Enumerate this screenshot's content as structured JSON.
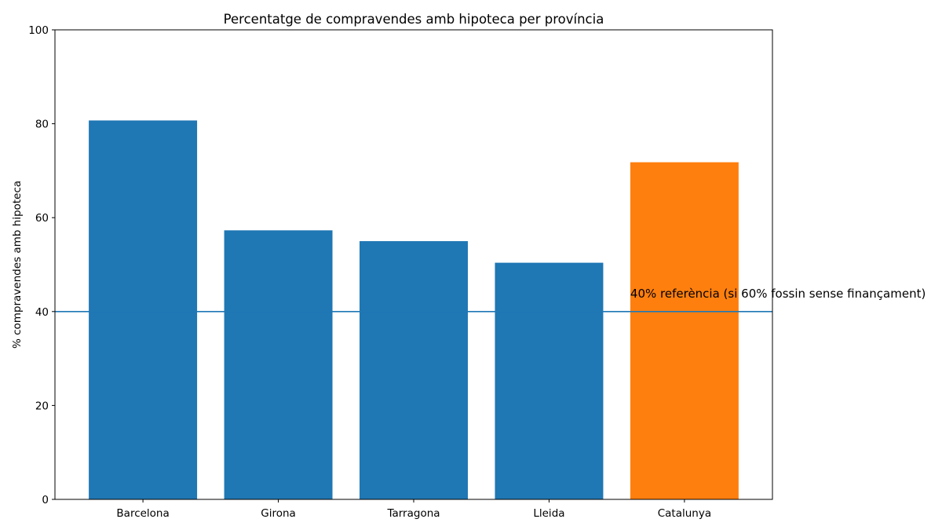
{
  "chart_data": {
    "type": "bar",
    "title": "Percentatge de compravendes amb hipoteca per província",
    "xlabel": "",
    "ylabel": "% compravendes amb hipoteca",
    "categories": [
      "Barcelona",
      "Girona",
      "Tarragona",
      "Lleida",
      "Catalunya"
    ],
    "values": [
      80.7,
      57.3,
      55.0,
      50.4,
      71.8
    ],
    "colors": [
      "#1f77b4",
      "#1f77b4",
      "#1f77b4",
      "#1f77b4",
      "#ff7f0e"
    ],
    "ylim": [
      0,
      100
    ],
    "yticks": [
      0,
      20,
      40,
      60,
      80,
      100
    ],
    "reference_line": {
      "value": 40,
      "color": "#1f77b4",
      "label": "40% referència (si 60% fossin sense finançament)"
    },
    "grid": false
  }
}
